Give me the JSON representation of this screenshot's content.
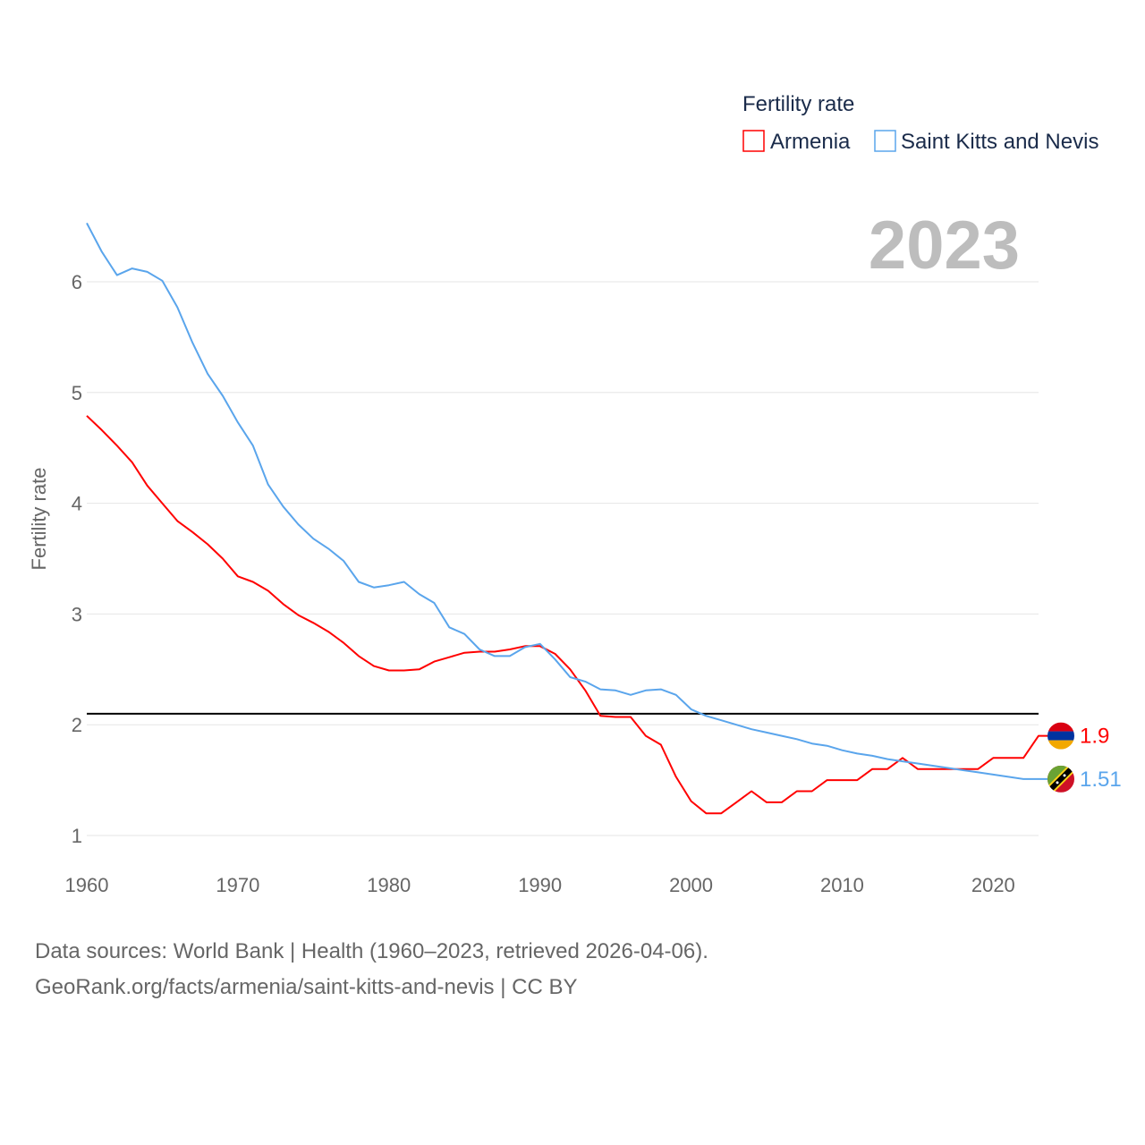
{
  "chart_data": {
    "type": "line",
    "title": "",
    "legend_title": "Fertility rate",
    "legend_position": "top-right",
    "xlabel": "",
    "ylabel": "Fertility rate",
    "xlim": [
      1960,
      2023
    ],
    "ylim": [
      0.75,
      6.6
    ],
    "xticks": [
      1960,
      1970,
      1980,
      1990,
      2000,
      2010,
      2020
    ],
    "yticks": [
      1,
      2,
      3,
      4,
      5,
      6
    ],
    "grid": true,
    "year_label": "2023",
    "reference_line": 2.1,
    "x_start": 1960,
    "series": [
      {
        "name": "Armenia",
        "color": "#ff0000",
        "end_label": "1.9",
        "flag": "armenia-flag",
        "values": [
          4.79,
          4.66,
          4.52,
          4.37,
          4.16,
          4.0,
          3.84,
          3.74,
          3.63,
          3.5,
          3.34,
          3.29,
          3.21,
          3.09,
          2.99,
          2.92,
          2.84,
          2.74,
          2.62,
          2.53,
          2.49,
          2.49,
          2.5,
          2.57,
          2.61,
          2.65,
          2.66,
          2.66,
          2.68,
          2.71,
          2.71,
          2.64,
          2.5,
          2.31,
          2.08,
          2.07,
          2.07,
          1.9,
          1.82,
          1.53,
          1.31,
          1.2,
          1.2,
          1.3,
          1.4,
          1.3,
          1.3,
          1.4,
          1.4,
          1.5,
          1.5,
          1.5,
          1.6,
          1.6,
          1.7,
          1.6,
          1.6,
          1.6,
          1.6,
          1.6,
          1.7,
          1.7,
          1.7,
          1.9
        ]
      },
      {
        "name": "Saint Kitts and Nevis",
        "color": "#5aa5ec",
        "end_label": "1.51",
        "flag": "saint-kitts-and-nevis-flag",
        "values": [
          6.53,
          6.27,
          6.06,
          6.12,
          6.09,
          6.01,
          5.77,
          5.45,
          5.17,
          4.97,
          4.73,
          4.52,
          4.17,
          3.97,
          3.81,
          3.68,
          3.59,
          3.48,
          3.29,
          3.24,
          3.26,
          3.29,
          3.18,
          3.1,
          2.88,
          2.82,
          2.68,
          2.62,
          2.62,
          2.7,
          2.73,
          2.59,
          2.43,
          2.39,
          2.32,
          2.31,
          2.27,
          2.31,
          2.32,
          2.27,
          2.14,
          2.08,
          2.04,
          2.0,
          1.96,
          1.93,
          1.9,
          1.87,
          1.83,
          1.81,
          1.77,
          1.74,
          1.72,
          1.69,
          1.67,
          1.65,
          1.63,
          1.61,
          1.59,
          1.57,
          1.55,
          1.53,
          1.51,
          1.51
        ]
      }
    ]
  },
  "footer": {
    "line1": "Data sources: World Bank | Health (1960–2023, retrieved 2026-04-06).",
    "line2": "GeoRank.org/facts/armenia/saint-kitts-and-nevis | CC BY"
  }
}
